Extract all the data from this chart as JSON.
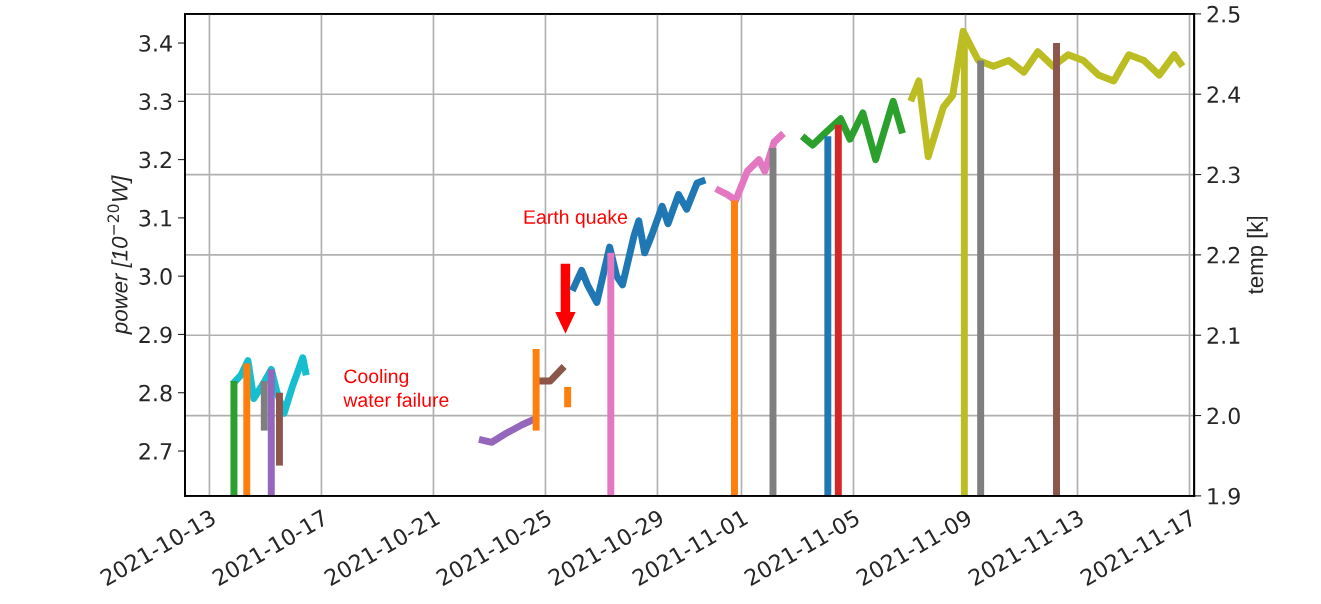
{
  "chart_data": {
    "type": "line",
    "ylabel": "power [10$^{−20}$W]",
    "y2label": "temp [k]",
    "xlim": [
      "2021-10-12T03:00",
      "2021-11-17T04:00"
    ],
    "xticks": [
      "2021-10-13",
      "2021-10-17",
      "2021-10-21",
      "2021-10-25",
      "2021-10-29",
      "2021-11-01",
      "2021-11-05",
      "2021-11-09",
      "2021-11-13",
      "2021-11-17"
    ],
    "ylim": [
      2.623,
      3.45
    ],
    "yticks": [
      2.7,
      2.8,
      2.9,
      {
        "value": 3,
        "label": "3.0"
      },
      3.1,
      3.2,
      3.3,
      3.4
    ],
    "y2lim": [
      1.9,
      2.5
    ],
    "y2ticks": [
      1.9,
      {
        "value": 2,
        "label": "2.0"
      },
      2.1,
      2.2,
      2.3,
      2.4,
      2.5
    ],
    "grid": true,
    "series": [
      {
        "color": "#17becf",
        "x": [
          "2021-10-13T20:00",
          "2021-10-14T03:00",
          "2021-10-14T09:00",
          "2021-10-14T14:00",
          "2021-10-14T22:00",
          "2021-10-15T05:00",
          "2021-10-15T10:00",
          "2021-10-15T16:00",
          "2021-10-15T23:00",
          "2021-10-16T08:00",
          "2021-10-16T11:00"
        ],
        "values": [
          2.815,
          2.83,
          2.855,
          2.79,
          2.815,
          2.84,
          2.8,
          2.765,
          2.81,
          2.86,
          2.83
        ]
      },
      {
        "color": "#9467bd",
        "x": [
          "2021-10-22T15:00",
          "2021-10-23T02:00",
          "2021-10-23T14:00",
          "2021-10-24T04:00",
          "2021-10-24T15:00"
        ],
        "values": [
          2.72,
          2.715,
          2.73,
          2.745,
          2.755
        ]
      },
      {
        "color": "#8c564b",
        "x": [
          "2021-10-24T17:00",
          "2021-10-25T04:00",
          "2021-10-25T16:00"
        ],
        "values": [
          2.82,
          2.82,
          2.845
        ]
      },
      {
        "color": "#ff7f0e",
        "x": [
          "2021-10-25T19:00",
          "2021-10-25T19:00"
        ],
        "values": [
          2.775,
          2.81
        ]
      },
      {
        "color": "#1f77b4",
        "x": [
          "2021-10-25T23:00",
          "2021-10-26T07:00",
          "2021-10-26T12:00",
          "2021-10-26T20:00",
          "2021-10-27T07:00",
          "2021-10-27T13:00",
          "2021-10-27T18:00",
          "2021-10-28T04:00",
          "2021-10-28T08:00",
          "2021-10-28T13:00",
          "2021-10-28T19:00",
          "2021-10-29T04:00",
          "2021-10-29T09:00",
          "2021-10-29T18:00",
          "2021-10-30T01:00",
          "2021-10-30T10:00",
          "2021-10-30T17:00"
        ],
        "values": [
          2.975,
          3.01,
          2.985,
          2.955,
          3.05,
          3.0,
          2.985,
          3.07,
          3.095,
          3.04,
          3.07,
          3.12,
          3.09,
          3.14,
          3.115,
          3.16,
          3.165
        ]
      },
      {
        "color": "#e377c2",
        "x": [
          "2021-10-31T02:00",
          "2021-10-31T12:00",
          "2021-10-31T19:00",
          "2021-11-01T05:00",
          "2021-11-01T15:00",
          "2021-11-01T20:00",
          "2021-11-02T04:00",
          "2021-11-02T12:00"
        ],
        "values": [
          3.15,
          3.14,
          3.13,
          3.18,
          3.2,
          3.18,
          3.23,
          3.245
        ]
      },
      {
        "color": "#2ca02c",
        "x": [
          "2021-11-03T04:00",
          "2021-11-03T13:00",
          "2021-11-04T02:00",
          "2021-11-04T13:00",
          "2021-11-04T21:00",
          "2021-11-05T08:00",
          "2021-11-05T19:00",
          "2021-11-06T10:00",
          "2021-11-06T18:00"
        ],
        "values": [
          3.24,
          3.225,
          3.25,
          3.27,
          3.235,
          3.28,
          3.2,
          3.3,
          3.245
        ]
      },
      {
        "color": "#bcbd22",
        "x": [
          "2021-11-07T01:00",
          "2021-11-07T08:00",
          "2021-11-07T16:00",
          "2021-11-08T05:00",
          "2021-11-08T13:00",
          "2021-11-08T22:00",
          "2021-11-09T11:00",
          "2021-11-10T00:00",
          "2021-11-10T13:00",
          "2021-11-11T02:00",
          "2021-11-11T14:00",
          "2021-11-12T03:00",
          "2021-11-12T16:00",
          "2021-11-13T05:00",
          "2021-11-13T18:00",
          "2021-11-14T07:00",
          "2021-11-14T20:00",
          "2021-11-15T09:00",
          "2021-11-15T22:00",
          "2021-11-16T11:00",
          "2021-11-16T18:00"
        ],
        "values": [
          3.3,
          3.335,
          3.205,
          3.29,
          3.31,
          3.42,
          3.37,
          3.36,
          3.37,
          3.35,
          3.385,
          3.36,
          3.38,
          3.37,
          3.345,
          3.335,
          3.38,
          3.37,
          3.345,
          3.38,
          3.36
        ]
      },
      {
        "color": "#2ca02c",
        "x": [
          "2021-10-13T21:00",
          "2021-10-13T21:00"
        ],
        "values": [
          2.82,
          2.623
        ]
      },
      {
        "color": "#ff7f0e",
        "x": [
          "2021-10-14T08:00",
          "2021-10-14T08:00"
        ],
        "values": [
          2.85,
          2.623
        ]
      },
      {
        "color": "#7f7f7f",
        "x": [
          "2021-10-14T23:00",
          "2021-10-14T23:00"
        ],
        "values": [
          2.82,
          2.735
        ]
      },
      {
        "color": "#9467bd",
        "x": [
          "2021-10-15T05:00",
          "2021-10-15T05:00"
        ],
        "values": [
          2.84,
          2.623
        ]
      },
      {
        "color": "#8c564b",
        "x": [
          "2021-10-15T12:00",
          "2021-10-15T12:00"
        ],
        "values": [
          2.8,
          2.675
        ]
      },
      {
        "color": "#ff7f0e",
        "x": [
          "2021-10-24T16:00",
          "2021-10-24T16:00"
        ],
        "values": [
          2.735,
          2.875
        ]
      },
      {
        "color": "#e377c2",
        "x": [
          "2021-10-27T08:00",
          "2021-10-27T08:00"
        ],
        "values": [
          3.04,
          2.623
        ]
      },
      {
        "color": "#ff7f0e",
        "x": [
          "2021-10-31T18:00",
          "2021-10-31T18:00"
        ],
        "values": [
          3.13,
          2.623
        ]
      },
      {
        "color": "#7f7f7f",
        "x": [
          "2021-11-02T03:00",
          "2021-11-02T03:00"
        ],
        "values": [
          3.22,
          2.623
        ]
      },
      {
        "color": "#1f77b4",
        "x": [
          "2021-11-04T02:00",
          "2021-11-04T02:00"
        ],
        "values": [
          3.24,
          2.623
        ]
      },
      {
        "color": "#d62728",
        "x": [
          "2021-11-04T11:00",
          "2021-11-04T11:00"
        ],
        "values": [
          3.26,
          2.623
        ]
      },
      {
        "color": "#bcbd22",
        "x": [
          "2021-11-08T23:00",
          "2021-11-08T23:00"
        ],
        "values": [
          3.4,
          2.623
        ]
      },
      {
        "color": "#7f7f7f",
        "x": [
          "2021-11-09T13:00",
          "2021-11-09T13:00"
        ],
        "values": [
          3.37,
          2.623
        ]
      },
      {
        "color": "#8c564b",
        "x": [
          "2021-11-12T06:00",
          "2021-11-12T06:00"
        ],
        "values": [
          3.4,
          2.623
        ]
      }
    ],
    "annotations": [
      "Earth quake",
      "Cooling\nwater failure"
    ]
  }
}
